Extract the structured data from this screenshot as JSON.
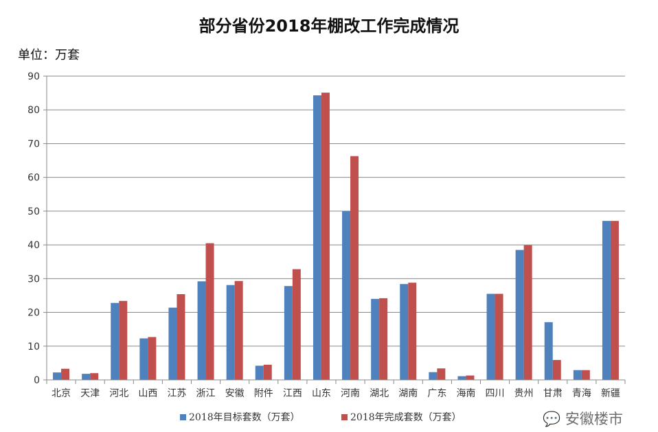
{
  "chart_data": {
    "type": "bar",
    "title": "部分省份2018年棚改工作完成情况",
    "unit_label": "单位：万套",
    "xlabel": "",
    "ylabel": "",
    "ylim": [
      0,
      90
    ],
    "yticks": [
      0,
      10,
      20,
      30,
      40,
      50,
      60,
      70,
      80,
      90
    ],
    "grid": true,
    "legend_position": "bottom",
    "categories": [
      "北京",
      "天津",
      "河北",
      "山西",
      "江苏",
      "浙江",
      "安徽",
      "附件",
      "江西",
      "山东",
      "河南",
      "湖北",
      "湖南",
      "广东",
      "海南",
      "四川",
      "贵州",
      "甘肃",
      "青海",
      "新疆"
    ],
    "series": [
      {
        "name": "2018年目标套数（万套）",
        "color": "#4f81bd",
        "values": [
          2.2,
          1.8,
          22.8,
          12.3,
          21.4,
          29.2,
          28.1,
          4.2,
          27.8,
          84.3,
          50.0,
          24.0,
          28.4,
          2.3,
          1.1,
          25.5,
          38.5,
          17.1,
          2.9,
          47.1
        ]
      },
      {
        "name": "2018年完成套数（万套）",
        "color": "#c0504d",
        "values": [
          3.3,
          2.0,
          23.4,
          12.7,
          25.4,
          40.5,
          29.3,
          4.5,
          32.8,
          85.1,
          66.3,
          24.2,
          28.8,
          3.4,
          1.3,
          25.5,
          39.9,
          5.9,
          2.9,
          47.1
        ]
      }
    ]
  },
  "watermark": "安徽楼市"
}
